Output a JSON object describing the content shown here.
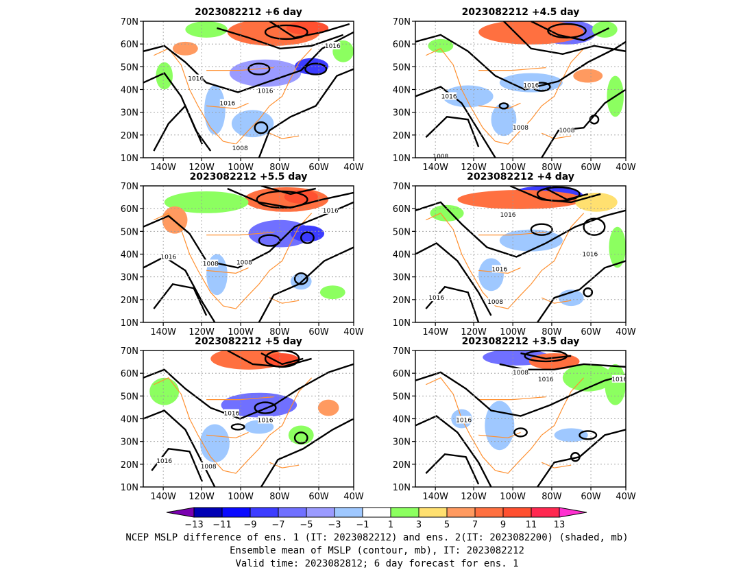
{
  "panels": [
    {
      "title": "2023082212  +6 day"
    },
    {
      "title": "2023082212  +4.5 day"
    },
    {
      "title": "2023082212  +5.5 day"
    },
    {
      "title": "2023082212  +4 day"
    },
    {
      "title": "2023082212  +5 day"
    },
    {
      "title": "2023082212  +3.5 day"
    }
  ],
  "lat_ticks": [
    "70N",
    "60N",
    "50N",
    "40N",
    "30N",
    "20N",
    "10N"
  ],
  "lon_ticks": [
    "140W",
    "120W",
    "100W",
    "80W",
    "60W",
    "40W"
  ],
  "contour_labels": [
    [
      "1016",
      "1016",
      "1016",
      "1016",
      "1008"
    ],
    [
      "1016",
      "1016",
      "1008",
      "1008",
      "1008"
    ],
    [
      "1016",
      "1016",
      "1008",
      "1008"
    ],
    [
      "1016",
      "1016",
      "1016",
      "1016",
      "1008"
    ],
    [
      "1016",
      "1016",
      "1016",
      "1008"
    ],
    [
      "1008",
      "1016",
      "1016",
      "1016"
    ]
  ],
  "colorbar": {
    "labels": [
      "−13",
      "−11",
      "−9",
      "−7",
      "−5",
      "−3",
      "−1",
      "1",
      "3",
      "5",
      "7",
      "9",
      "11",
      "13"
    ],
    "colors": [
      "#7a00b0",
      "#0000b4",
      "#0a0aff",
      "#3c3cff",
      "#7070ff",
      "#9b9bff",
      "#9fc8ff",
      "#ffffff",
      "#8cff60",
      "#ffe070",
      "#ff9a60",
      "#ff7040",
      "#ff5030",
      "#ff2850",
      "#ff30d0"
    ]
  },
  "footer": [
    "NCEP MSLP difference of ens. 1 (IT: 2023082212) and ens. 2(IT: 2023082200) (shaded, mb)",
    "Ensemble mean of MSLP (contour, mb), IT: 2023082212",
    "Valid time: 2023082812; 6 day forecast for ens. 1"
  ]
}
